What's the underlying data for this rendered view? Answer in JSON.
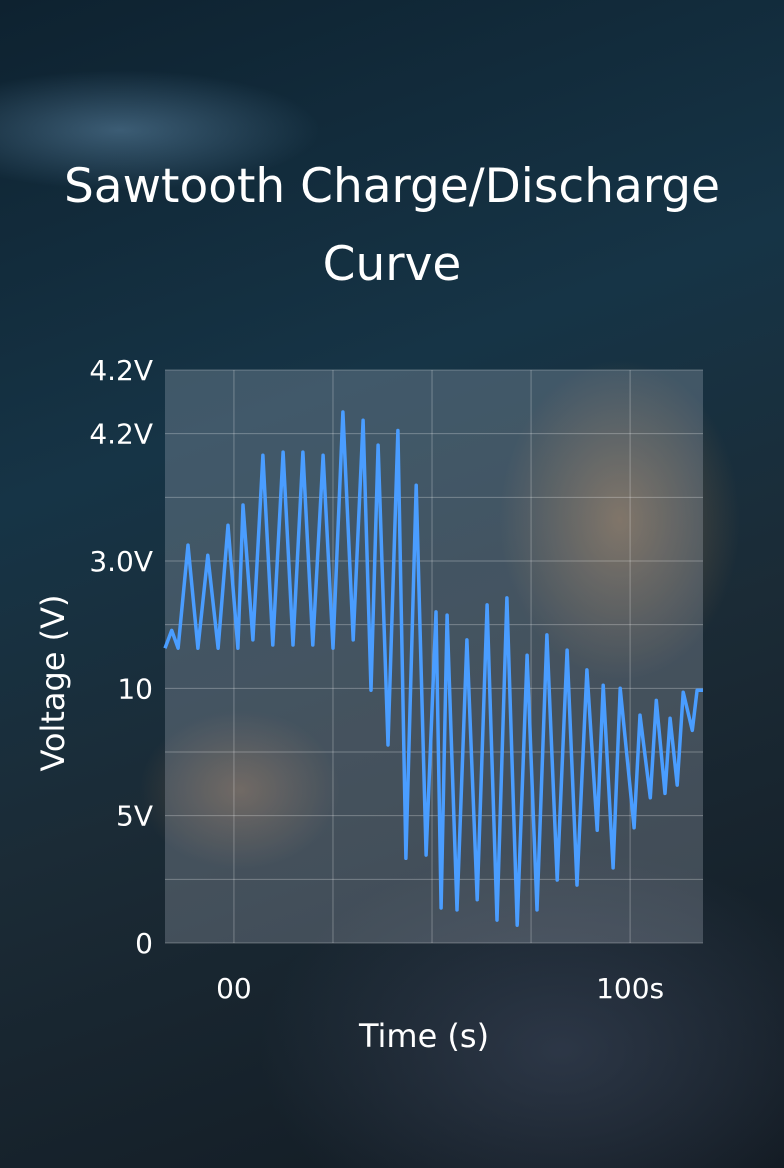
{
  "chart_data": {
    "type": "line",
    "title": "Sawtooth Charge/Discharge Curve",
    "xlabel": "Time (s)",
    "ylabel": "Voltage (V)",
    "x": [
      -17.4,
      -15.7,
      -14.1,
      -11.6,
      -9.1,
      -6.6,
      -4.0,
      -1.5,
      1.0,
      2.3,
      4.8,
      7.3,
      9.8,
      12.4,
      14.9,
      17.4,
      19.9,
      22.5,
      25.0,
      27.5,
      30.1,
      32.6,
      34.6,
      36.4,
      38.9,
      41.4,
      43.4,
      46.0,
      48.5,
      51.0,
      52.3,
      53.8,
      56.3,
      58.8,
      61.4,
      63.9,
      66.4,
      68.9,
      71.5,
      74.0,
      76.5,
      79.0,
      81.6,
      84.1,
      86.6,
      89.1,
      91.7,
      93.2,
      95.7,
      97.5,
      101.0,
      102.5,
      105.1,
      106.6,
      108.8,
      110.1,
      111.9,
      113.4,
      115.7,
      116.9,
      118.4
    ],
    "series": [
      {
        "name": "Voltage",
        "color": "#4a9dff",
        "values": [
          4.63,
          4.91,
          4.63,
          6.25,
          4.63,
          6.09,
          4.63,
          6.56,
          4.63,
          6.88,
          4.76,
          7.66,
          4.68,
          7.71,
          4.68,
          7.71,
          4.68,
          7.66,
          4.63,
          8.34,
          4.76,
          8.21,
          3.97,
          7.82,
          3.11,
          8.05,
          1.33,
          7.19,
          1.38,
          5.2,
          0.55,
          5.15,
          0.52,
          4.76,
          0.68,
          5.31,
          0.36,
          5.42,
          0.28,
          4.52,
          0.52,
          4.84,
          0.99,
          4.6,
          0.91,
          4.29,
          1.77,
          4.05,
          1.18,
          4.0,
          1.81,
          3.58,
          2.28,
          3.81,
          2.35,
          3.53,
          2.48,
          3.94,
          3.34,
          3.97,
          3.97
        ]
      }
    ],
    "xlim": [
      -17.4,
      118.4
    ],
    "xticks": [
      {
        "value": 0,
        "label": "00"
      },
      {
        "value": 100,
        "label": "100s"
      }
    ],
    "xgrid": [
      25,
      50,
      75
    ],
    "ylim": [
      0,
      9
    ],
    "yticks": [
      0,
      {
        "value": 2,
        "label": "5V"
      },
      {
        "value": 4,
        "label": "10"
      },
      {
        "value": 6,
        "label": "3.0V"
      },
      {
        "value": 8,
        "label": "4.2V"
      },
      {
        "value": 9,
        "label": "4.2V"
      }
    ],
    "ygrid": [
      1,
      3,
      5,
      7
    ],
    "grid": true
  }
}
